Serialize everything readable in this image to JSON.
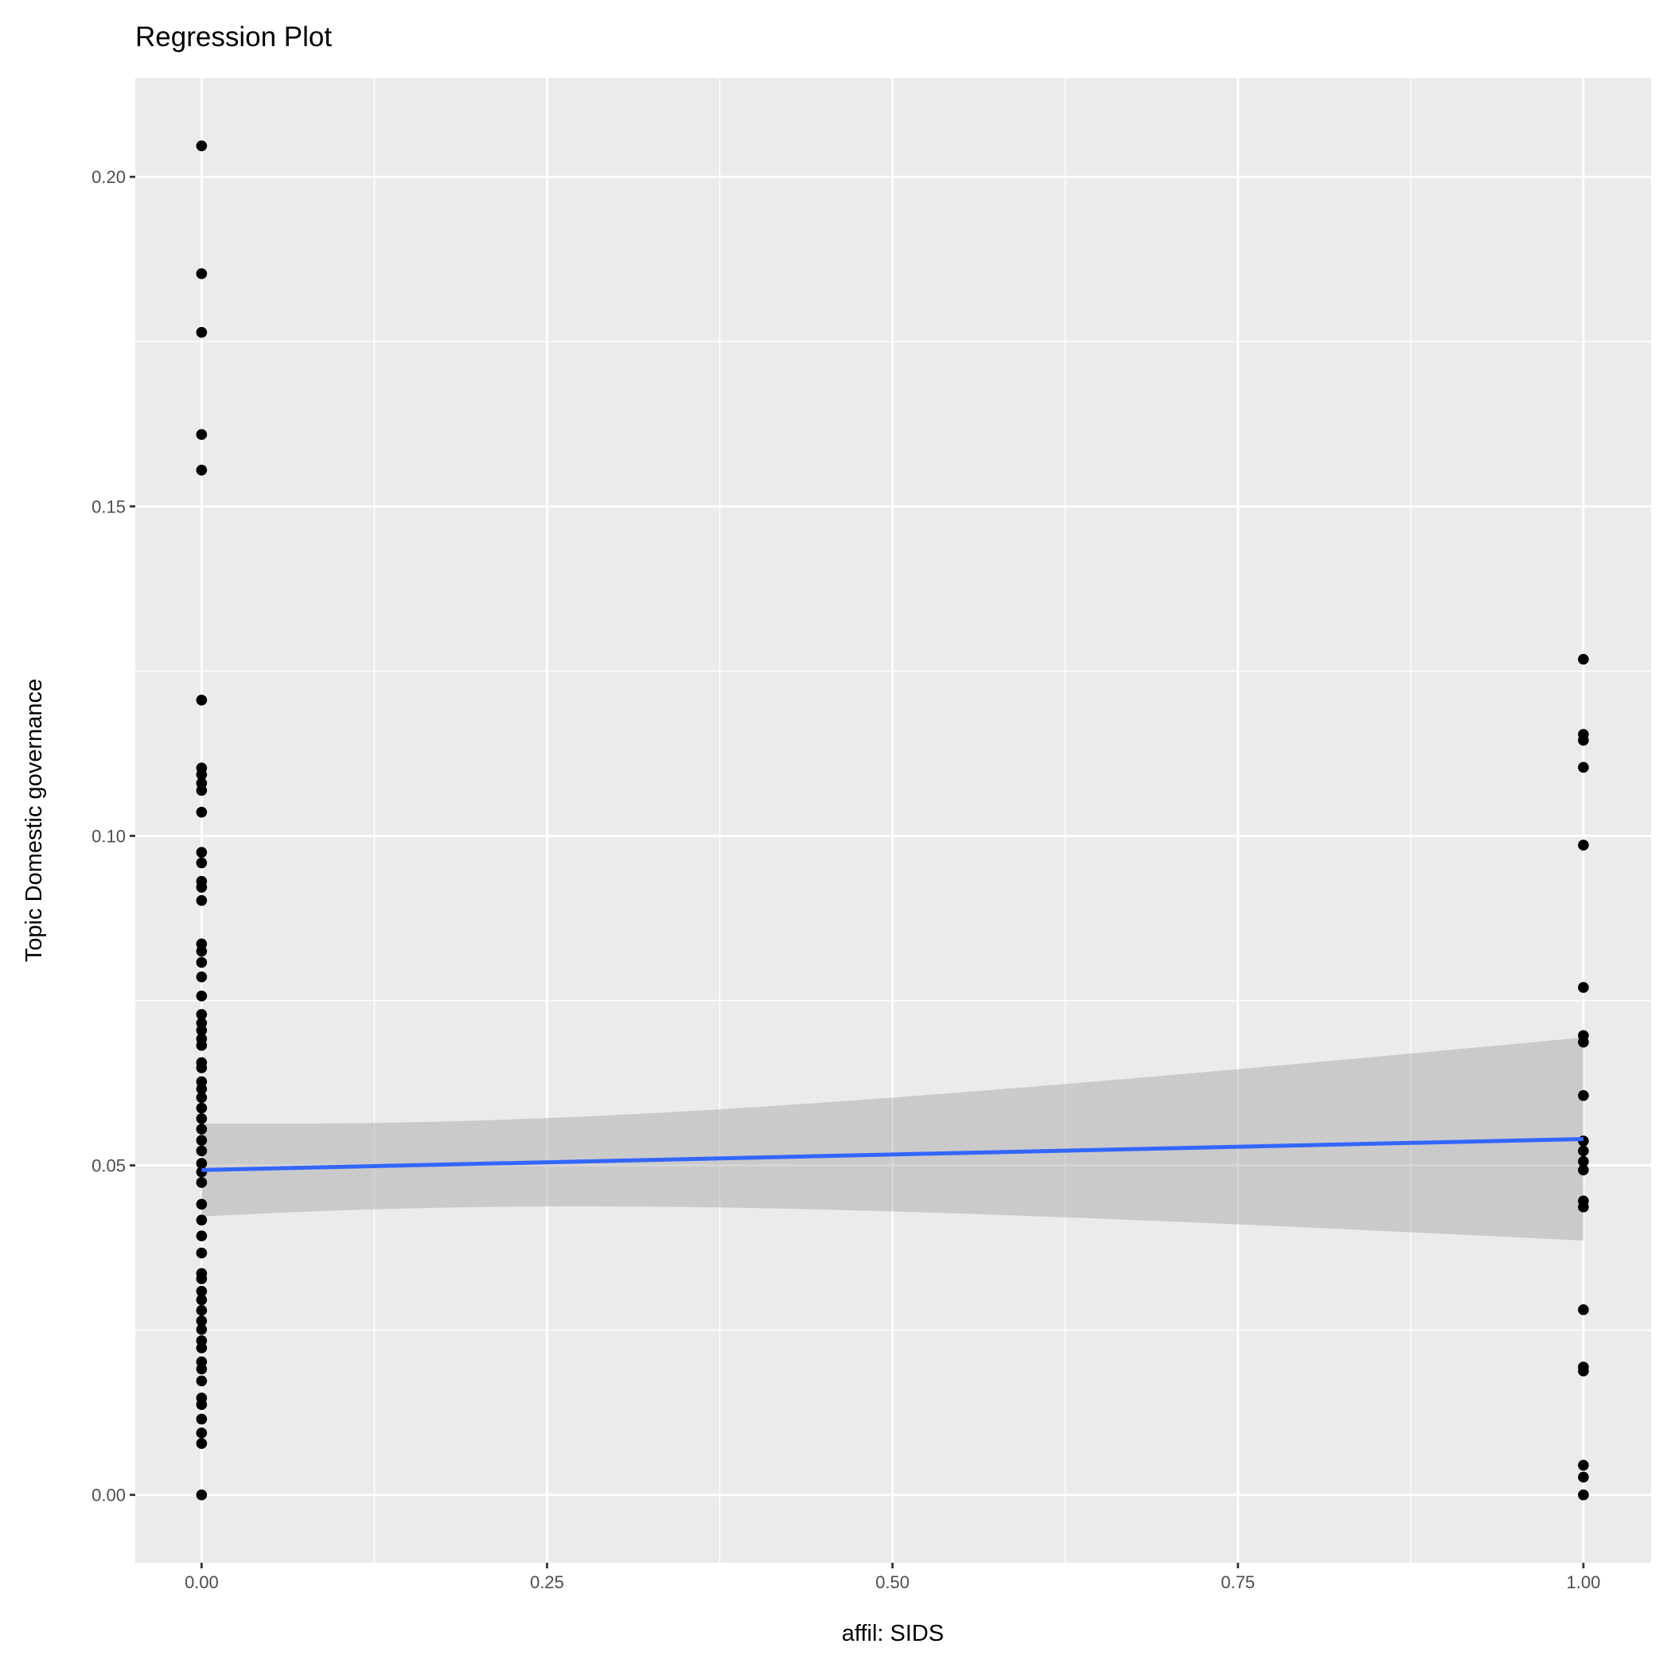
{
  "chart_data": {
    "type": "scatter",
    "title": "Regression Plot",
    "xlabel": "affil: SIDS",
    "ylabel": "Topic Domestic governance",
    "xlim": [
      -0.048,
      1.049
    ],
    "ylim": [
      -0.0103,
      0.215
    ],
    "xticks": [
      0,
      0.25,
      0.5,
      0.75,
      1
    ],
    "xtick_labels": [
      "0.00",
      "0.25",
      "0.50",
      "0.75",
      "1.00"
    ],
    "yticks": [
      0,
      0.05,
      0.1,
      0.15,
      0.2
    ],
    "ytick_labels": [
      "0.00",
      "0.05",
      "0.10",
      "0.15",
      "0.20"
    ],
    "grid": true,
    "series": [
      {
        "name": "affil 0",
        "x": 0,
        "values": [
          0.2047,
          0.1853,
          0.1764,
          0.1609,
          0.1555,
          0.1206,
          0.1103,
          0.1093,
          0.108,
          0.1069,
          0.1036,
          0.0975,
          0.0959,
          0.0931,
          0.0922,
          0.0902,
          0.0836,
          0.0825,
          0.0808,
          0.0786,
          0.0757,
          0.0729,
          0.0716,
          0.0705,
          0.0692,
          0.0682,
          0.0656,
          0.0648,
          0.0627,
          0.0616,
          0.0603,
          0.0587,
          0.0571,
          0.0555,
          0.0538,
          0.0522,
          0.0503,
          0.049,
          0.0474,
          0.0441,
          0.0417,
          0.0393,
          0.0367,
          0.0336,
          0.0328,
          0.0309,
          0.0296,
          0.028,
          0.0264,
          0.0251,
          0.0234,
          0.0223,
          0.0202,
          0.0191,
          0.0173,
          0.0147,
          0.0137,
          0.0115,
          0.0094,
          0.0078,
          0.0
        ]
      },
      {
        "name": "affil 1",
        "x": 1,
        "values": [
          0.1268,
          0.1154,
          0.1145,
          0.1104,
          0.0986,
          0.077,
          0.0697,
          0.0687,
          0.0606,
          0.0537,
          0.0522,
          0.0506,
          0.0493,
          0.0446,
          0.0437,
          0.0281,
          0.0194,
          0.0188,
          0.0045,
          0.0027,
          0.0
        ]
      }
    ],
    "regression": {
      "intercept": 0.0493,
      "slope": 0.0047,
      "ci_center_x": 0.16,
      "ci_min_halfwidth": 0.00653,
      "ci_curvature": 0.000276,
      "color": "#3366ff"
    },
    "colors": {
      "panel": "#ebebeb",
      "grid": "#ffffff",
      "points": "#000000",
      "ribbon": "#c8c8c8"
    }
  }
}
